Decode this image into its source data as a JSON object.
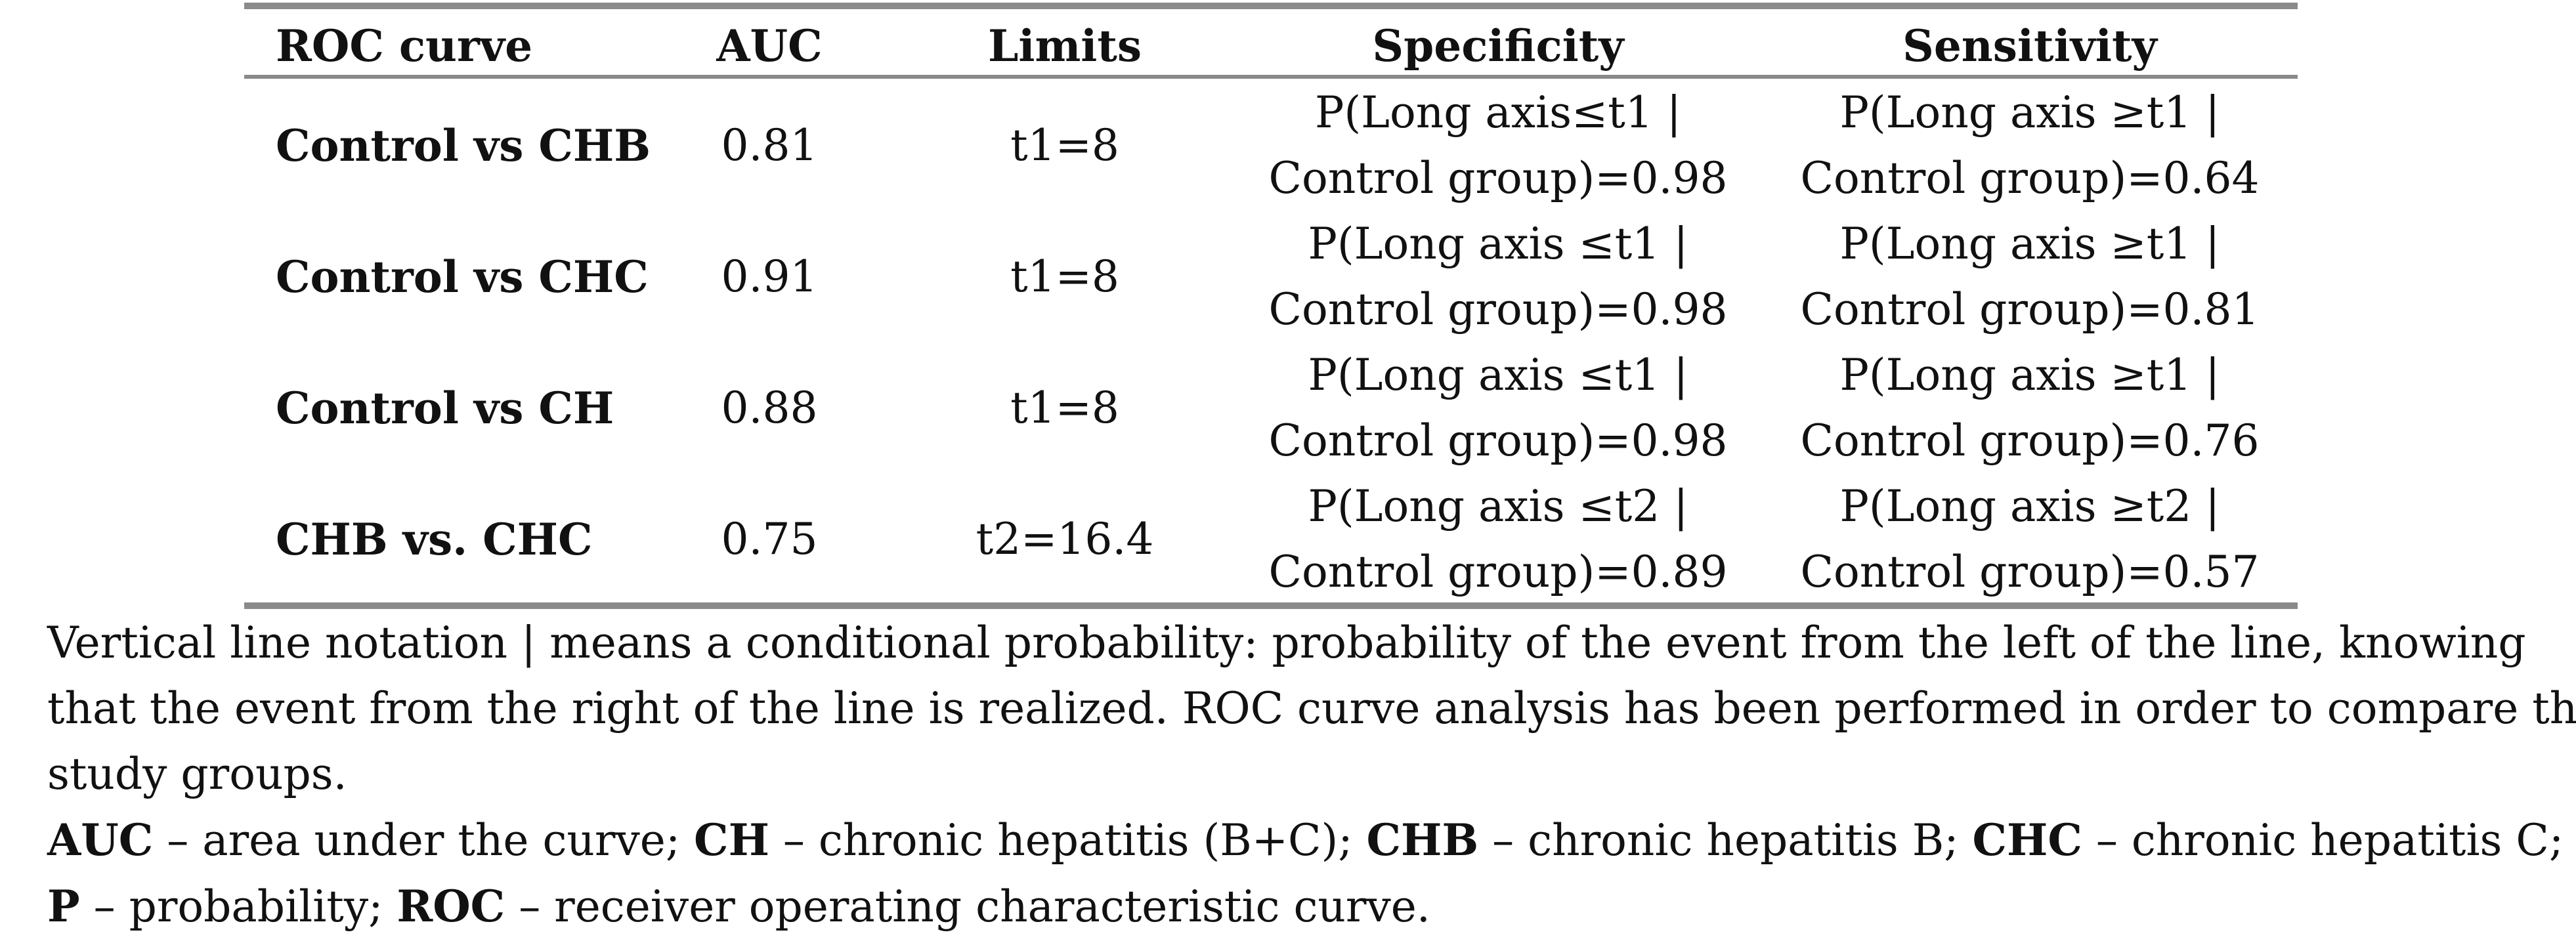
{
  "table": {
    "headers": [
      "ROC curve",
      "AUC",
      "Limits",
      "Specificity",
      "Sensitivity"
    ],
    "rows": [
      {
        "curve": "Control vs CHB",
        "auc": "0.81",
        "limits": "t1=8",
        "specificity_line1": "P(Long axis≤t1 |",
        "specificity_line2": "Control group)=0.98",
        "sensitivity_line1": "P(Long axis ≥t1 |",
        "sensitivity_line2": "Control group)=0.64"
      },
      {
        "curve": "Control vs CHC",
        "auc": "0.91",
        "limits": "t1=8",
        "specificity_line1": "P(Long axis ≤t1 |",
        "specificity_line2": "Control group)=0.98",
        "sensitivity_line1": "P(Long axis ≥t1 |",
        "sensitivity_line2": "Control group)=0.81"
      },
      {
        "curve": "Control vs CH",
        "auc": "0.88",
        "limits": "t1=8",
        "specificity_line1": "P(Long axis ≤t1 |",
        "specificity_line2": "Control group)=0.98",
        "sensitivity_line1": "P(Long axis ≥t1 |",
        "sensitivity_line2": "Control group)=0.76"
      },
      {
        "curve": "CHB vs. CHC",
        "auc": "0.75",
        "limits": "t2=16.4",
        "specificity_line1": "P(Long axis ≤t2 |",
        "specificity_line2": "Control group)=0.89",
        "sensitivity_line1": "P(Long axis ≥t2 |",
        "sensitivity_line2": "Control group)=0.57"
      }
    ]
  },
  "footnote": {
    "line1": "Vertical line notation | means a conditional probability: probability of the event from the left of the line, knowing",
    "line2": "that the event from the right of the line is realized. ROC curve analysis has been performed in order to compare the",
    "line3": "study groups.",
    "abbrev1": [
      {
        "term": "AUC",
        "def": " – area under the curve; "
      },
      {
        "term": "CH",
        "def": " – chronic hepatitis (B+C); "
      },
      {
        "term": "CHB",
        "def": " – chronic hepatitis B; "
      },
      {
        "term": "CHC",
        "def": " – chronic hepatitis C;"
      }
    ],
    "abbrev2": [
      {
        "term": "P",
        "def": " – probability; "
      },
      {
        "term": "ROC",
        "def": " – receiver operating characteristic curve."
      }
    ]
  }
}
